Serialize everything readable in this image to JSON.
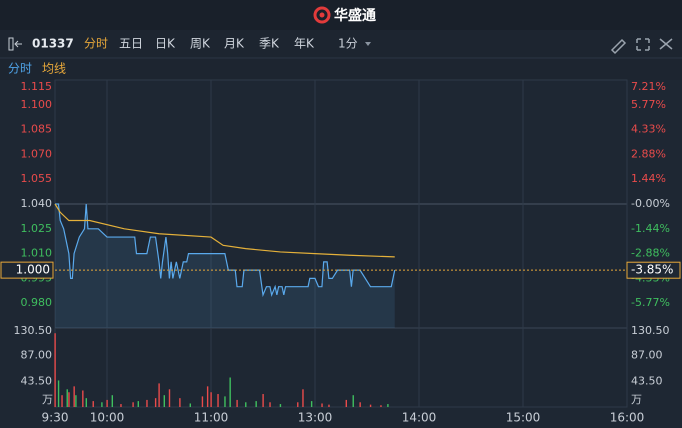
{
  "header": {
    "title": "华盛通"
  },
  "toolbar": {
    "code": "01337",
    "tabs": [
      "分时",
      "五日",
      "日K",
      "周K",
      "月K",
      "季K",
      "年K"
    ],
    "interval": "1分"
  },
  "legend": [
    {
      "name": "分时",
      "color": "#4fa3e8"
    },
    {
      "name": "均线",
      "color": "#e8a83a"
    }
  ],
  "chart_data": {
    "type": "line",
    "xlim": [
      0,
      330
    ],
    "xticks": [
      {
        "value": 0,
        "label": "9:30"
      },
      {
        "value": 30,
        "label": "10:00"
      },
      {
        "value": 90,
        "label": "11:00"
      },
      {
        "value": 150,
        "label": "13:00"
      },
      {
        "value": 210,
        "label": "14:00"
      },
      {
        "value": 270,
        "label": "15:00"
      },
      {
        "value": 330,
        "label": "16:00"
      }
    ],
    "grid": "x",
    "ylim": [
      0.965,
      1.115
    ],
    "yticks": [
      {
        "value": 1.115,
        "label": "1.115"
      },
      {
        "value": 1.1,
        "label": "1.100"
      },
      {
        "value": 1.085,
        "label": "1.085"
      },
      {
        "value": 1.07,
        "label": "1.070"
      },
      {
        "value": 1.055,
        "label": "1.055"
      },
      {
        "value": 1.04,
        "label": "1.040"
      },
      {
        "value": 1.025,
        "label": "1.025"
      },
      {
        "value": 1.01,
        "label": "1.010"
      },
      {
        "value": 0.995,
        "label": "0.995"
      },
      {
        "value": 0.98,
        "label": "0.980"
      }
    ],
    "y2lim": [
      -7.21,
      7.21
    ],
    "y2ticks": [
      {
        "value": 7.21,
        "label": "7.21%"
      },
      {
        "value": 5.77,
        "label": "5.77%"
      },
      {
        "value": 4.33,
        "label": "4.33%"
      },
      {
        "value": 2.88,
        "label": "2.88%"
      },
      {
        "value": 1.44,
        "label": "1.44%"
      },
      {
        "value": 0,
        "label": "-0.00%"
      },
      {
        "value": -1.44,
        "label": "-1.44%"
      },
      {
        "value": -2.88,
        "label": "-2.88%"
      },
      {
        "value": -4.33,
        "label": "-4.33%"
      },
      {
        "value": -5.77,
        "label": "-5.77%"
      }
    ],
    "up_color": "#e94b4b",
    "down_color": "#3fbf5f",
    "series": [
      {
        "name": "分时",
        "color": "#5aa9ec",
        "x": [
          0,
          2,
          3,
          5,
          8,
          9,
          10,
          11,
          14,
          17,
          18,
          19,
          25,
          30,
          46,
          47,
          53,
          55,
          58,
          60,
          61,
          62,
          64,
          65,
          66,
          67,
          68,
          70,
          72,
          74,
          76,
          77,
          98,
          100,
          104,
          105,
          108,
          109,
          118,
          120,
          122,
          124,
          125,
          127,
          128,
          129,
          131,
          132,
          133,
          146,
          147,
          150,
          152,
          154,
          155,
          157,
          158,
          160,
          163,
          170,
          171,
          172,
          176,
          182,
          194,
          196
        ],
        "values": [
          1.04,
          1.04,
          1.03,
          1.025,
          1.01,
          0.995,
          0.995,
          1.01,
          1.02,
          1.025,
          1.04,
          1.025,
          1.025,
          1.02,
          1.02,
          1.01,
          1.01,
          1.02,
          1.02,
          1.005,
          0.995,
          1.005,
          1.02,
          1.01,
          0.995,
          1.005,
          0.995,
          1.005,
          0.995,
          1.005,
          1.005,
          1.01,
          1.01,
          1.0,
          1.0,
          0.99,
          0.99,
          1.0,
          1.0,
          0.985,
          0.99,
          0.99,
          0.985,
          0.99,
          0.985,
          0.99,
          0.99,
          0.985,
          0.99,
          0.99,
          0.995,
          0.995,
          0.99,
          0.99,
          1.005,
          1.005,
          0.995,
          0.995,
          1.0,
          1.0,
          0.99,
          1.0,
          1.0,
          0.99,
          0.99,
          1.0
        ]
      },
      {
        "name": "均线",
        "color": "#e5b13a",
        "x": [
          0,
          3,
          8,
          20,
          40,
          60,
          90,
          97,
          110,
          130,
          150,
          170,
          196
        ],
        "values": [
          1.04,
          1.035,
          1.03,
          1.03,
          1.025,
          1.022,
          1.02,
          1.015,
          1.013,
          1.011,
          1.01,
          1.009,
          1.008
        ]
      }
    ],
    "current": {
      "value": 1.0,
      "label": "1.000",
      "color": "#e8a83a"
    },
    "change": {
      "value": -3.85,
      "label": "-3.85%"
    },
    "volume": {
      "ylim": [
        0,
        130.5
      ],
      "yticks": [
        {
          "value": 130.5,
          "label": "130.50"
        },
        {
          "value": 87,
          "label": "87.00"
        },
        {
          "value": 43.5,
          "label": "43.50"
        }
      ],
      "unit": "万",
      "x": [
        0,
        2,
        4,
        7,
        8,
        11,
        12,
        16,
        18,
        22,
        27,
        30,
        33,
        38,
        45,
        48,
        53,
        58,
        60,
        63,
        66,
        72,
        78,
        85,
        88,
        90,
        94,
        98,
        101,
        105,
        110,
        116,
        120,
        124,
        130,
        140,
        143,
        148,
        154,
        158,
        168,
        172,
        176,
        182,
        188,
        192
      ],
      "values": [
        125,
        45,
        20,
        30,
        25,
        35,
        20,
        28,
        15,
        10,
        8,
        12,
        20,
        5,
        8,
        10,
        12,
        15,
        40,
        20,
        30,
        15,
        6,
        18,
        35,
        25,
        22,
        18,
        50,
        12,
        8,
        10,
        22,
        8,
        5,
        8,
        30,
        10,
        6,
        4,
        12,
        20,
        8,
        4,
        3,
        5
      ],
      "bar_colors": [
        "#e94b4b",
        "#3fbf5f",
        "#e94b4b",
        "#3fbf5f",
        "#e94b4b",
        "#e94b4b",
        "#3fbf5f",
        "#e94b4b",
        "#3fbf5f",
        "#e94b4b",
        "#3fbf5f",
        "#e94b4b",
        "#3fbf5f",
        "#e94b4b",
        "#e94b4b",
        "#3fbf5f",
        "#e94b4b",
        "#e94b4b",
        "#e94b4b",
        "#3fbf5f",
        "#e94b4b",
        "#e94b4b",
        "#3fbf5f",
        "#e94b4b",
        "#e94b4b",
        "#e94b4b",
        "#e94b4b",
        "#3fbf5f",
        "#3fbf5f",
        "#e94b4b",
        "#3fbf5f",
        "#3fbf5f",
        "#e94b4b",
        "#e94b4b",
        "#3fbf5f",
        "#e94b4b",
        "#e94b4b",
        "#3fbf5f",
        "#e94b4b",
        "#e94b4b",
        "#e94b4b",
        "#3fbf5f",
        "#e94b4b",
        "#e94b4b",
        "#e94b4b",
        "#3fbf5f"
      ]
    }
  }
}
